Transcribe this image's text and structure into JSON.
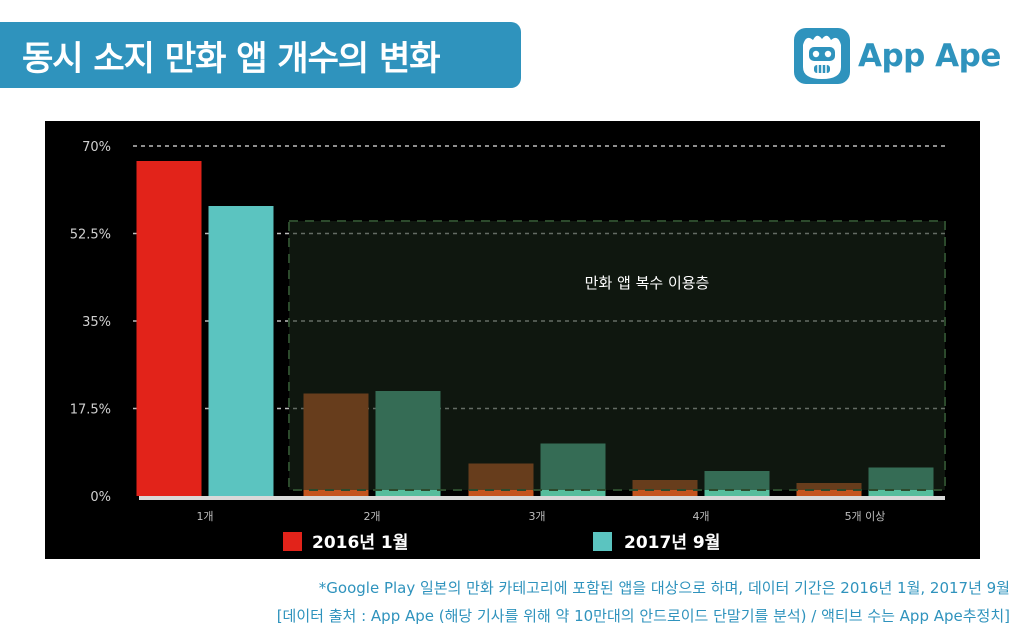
{
  "title": "동시 소지 만화 앱 개수의 변화",
  "logo": {
    "text": "App Ape",
    "icon": "monkey-logo-icon",
    "color": "#2f93bd"
  },
  "colors": {
    "series_2016": "#e2231a",
    "series_2017": "#5bc4c0",
    "series_2016_overlay": "#c4541e",
    "series_2017_overlay": "#55bd9c",
    "region_fill": "#1b2a1b",
    "banner": "#2f93bd"
  },
  "chart_data": {
    "type": "bar",
    "categories": [
      "1개",
      "2개",
      "3개",
      "4개",
      "5개 이상"
    ],
    "series": [
      {
        "name": "2016년 1월",
        "values": [
          67,
          20.5,
          6.5,
          3.2,
          2.6
        ]
      },
      {
        "name": "2017년 9월",
        "values": [
          58,
          21,
          10.5,
          5,
          5.7
        ]
      }
    ],
    "ylim": [
      0,
      70
    ],
    "yticks": [
      0,
      17.5,
      35,
      52.5,
      70
    ],
    "ytick_labels": [
      "0%",
      "17.5%",
      "35%",
      "52.5%",
      "70%"
    ],
    "grid": true,
    "annotation": {
      "label": "만화 앱 복수 이용층",
      "covers_categories": [
        "2개",
        "3개",
        "4개",
        "5개 이상"
      ],
      "top_value": 55
    },
    "legend": {
      "position": "bottom"
    }
  },
  "footnotes": [
    "*Google Play 일본의 만화 카테고리에 포함된 앱을 대상으로 하며, 데이터 기간은 2016년 1월, 2017년 9월",
    "[데이터 출처 : App Ape (해당 기사를 위해 약 10만대의 안드로이드 단말기를 분석) / 액티브 수는 App Ape추정치]"
  ]
}
